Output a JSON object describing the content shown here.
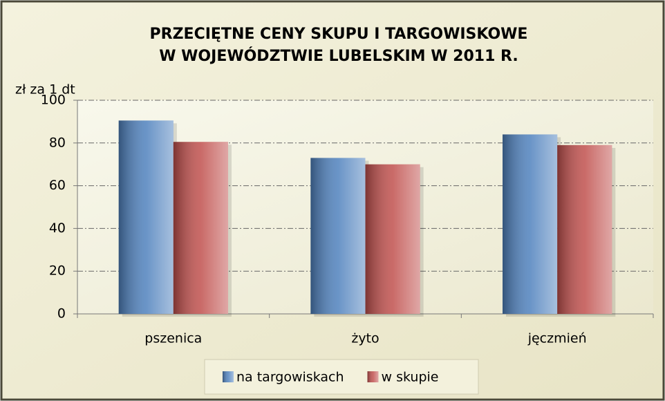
{
  "chart_data": {
    "type": "bar",
    "title": [
      "PRZECIĘTNE CENY SKUPU I TARGOWISKOWE",
      "W WOJEWÓDZTWIE LUBELSKIM W 2011 R."
    ],
    "y_label": "zł za 1 dt",
    "categories": [
      "pszenica",
      "żyto",
      "jęczmień"
    ],
    "series": [
      {
        "name": "na targowiskach",
        "color": "#4f81bd",
        "values": [
          90.5,
          73,
          84
        ]
      },
      {
        "name": "w skupie",
        "color": "#c0504d",
        "values": [
          80.5,
          70,
          79
        ]
      }
    ],
    "ylim": [
      0,
      100
    ],
    "yticks": [
      0,
      20,
      40,
      60,
      80,
      100
    ],
    "grid": true,
    "legend": "bottom"
  }
}
